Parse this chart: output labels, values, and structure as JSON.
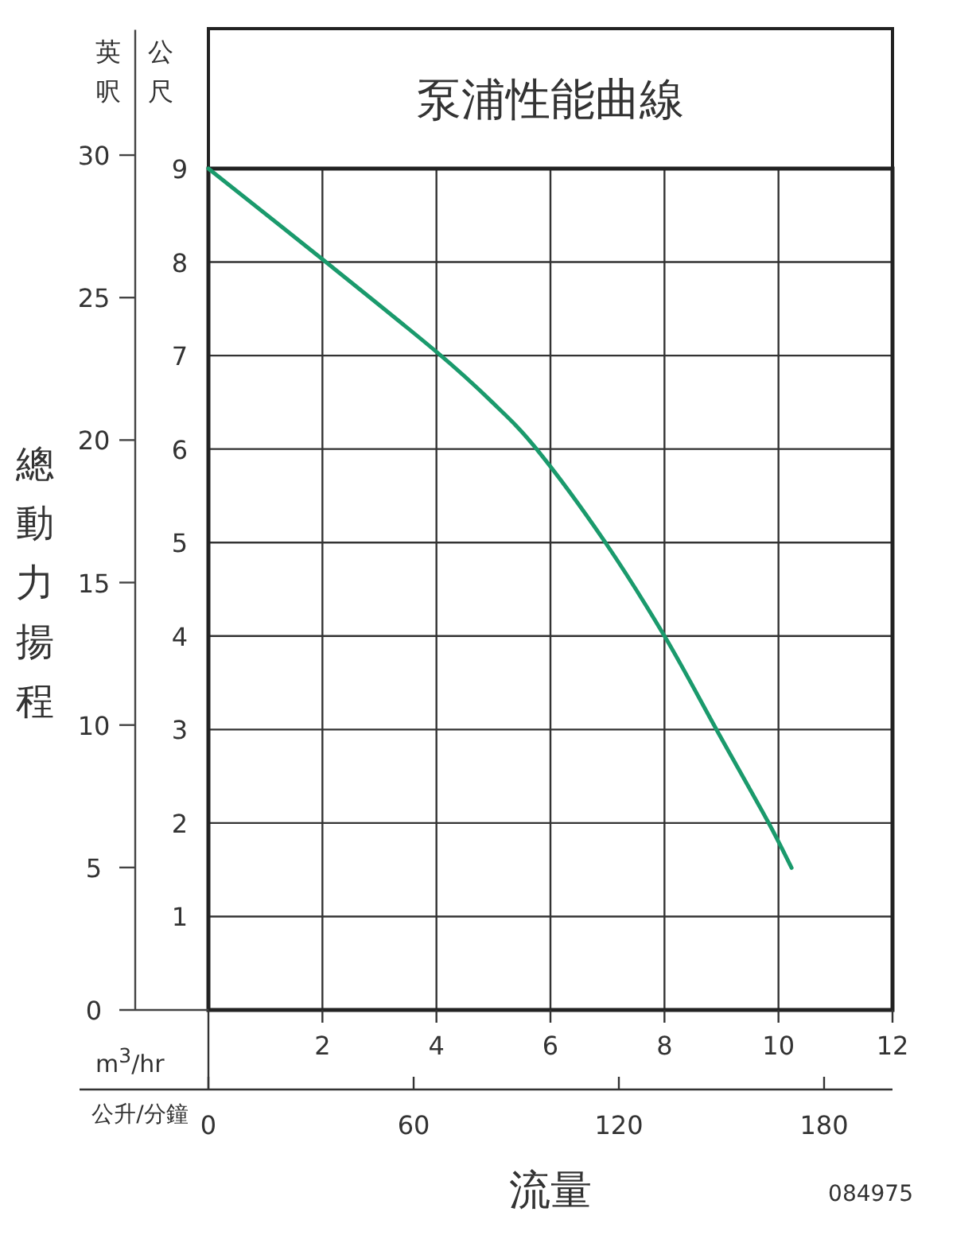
{
  "chart_data": {
    "type": "line",
    "title": "泵浦性能曲線",
    "xlabel": "流量",
    "ylabel": "公尺",
    "y2label": "英呎",
    "x2label": "公升/分鐘",
    "annotations": [
      "總動力揚程",
      "m$^{3}$/hr",
      "084975"
    ],
    "x": [
      0,
      2,
      4,
      4.98,
      5.77,
      6.93,
      8,
      8.93,
      9.81,
      10.23
    ],
    "series": [
      {
        "color": "#1a9a6c",
        "values": [
          9,
          8.03,
          7.04,
          6.5,
          5.99,
          5.03,
          4,
          2.98,
          2.02,
          1.52
        ]
      }
    ],
    "xlim": [
      0,
      12
    ],
    "xticks": [
      2,
      4,
      6,
      8,
      10,
      12
    ],
    "ylim": [
      0,
      9
    ],
    "yticks": [
      1,
      2,
      3,
      4,
      5,
      6,
      7,
      8,
      9
    ],
    "y2lim": [
      0,
      34.4
    ],
    "y2ticks": [
      0,
      5,
      10,
      15,
      20,
      25,
      30
    ],
    "x2lim": [
      0,
      200
    ],
    "x2ticks": [
      0,
      60,
      120,
      180
    ],
    "grid": true,
    "marker": "none",
    "line_style": "solid"
  }
}
